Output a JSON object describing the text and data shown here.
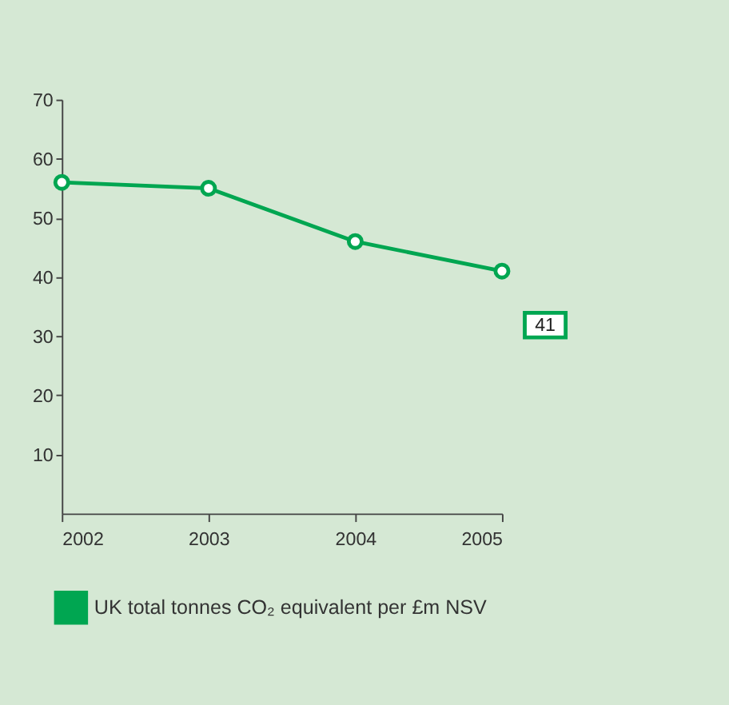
{
  "chart_data": {
    "type": "line",
    "x": [
      2002,
      2003,
      2004,
      2005
    ],
    "xlim": [
      2002,
      2005
    ],
    "xticks": [
      2002,
      2003,
      2004,
      2005
    ],
    "ylim": [
      0,
      70
    ],
    "yticks": [
      10,
      20,
      30,
      40,
      50,
      60,
      70
    ],
    "series": [
      {
        "name": "UK total tonnes CO₂ equivalent per £m NSV",
        "color": "#00a651",
        "values": [
          56,
          55,
          46,
          41
        ],
        "value_labels": [
          null,
          null,
          null,
          "41"
        ]
      }
    ],
    "marker": "circle",
    "line_style": "solid",
    "grid": false,
    "legend": "bottom left"
  }
}
